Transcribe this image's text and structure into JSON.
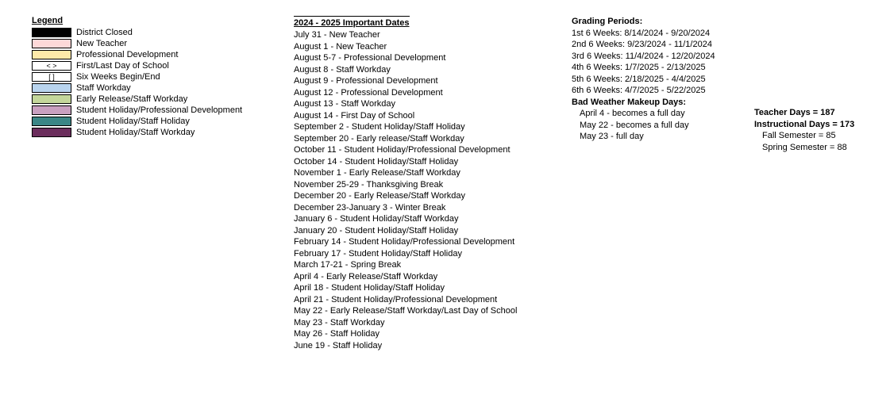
{
  "legend": {
    "header": "Legend",
    "items": [
      {
        "color": "#000000",
        "label": "District Closed",
        "glyph": ""
      },
      {
        "color": "#fdd8d8",
        "label": "New Teacher",
        "glyph": ""
      },
      {
        "color": "#fde9a9",
        "label": "Professional Development",
        "glyph": ""
      },
      {
        "color": "#ffffff",
        "label": "First/Last Day of School",
        "glyph": "< >"
      },
      {
        "color": "#ffffff",
        "label": "Six Weeks Begin/End",
        "glyph": "[  ]"
      },
      {
        "color": "#b9d4ee",
        "label": "Staff Workday",
        "glyph": ""
      },
      {
        "color": "#c4d79b",
        "label": "Early Release/Staff Workday",
        "glyph": ""
      },
      {
        "color": "#c9a0c0",
        "label": "Student Holiday/Professional Development",
        "glyph": ""
      },
      {
        "color": "#3b8686",
        "label": "Student Holiday/Staff Holiday",
        "glyph": ""
      },
      {
        "color": "#6b2d5c",
        "label": "Student Holiday/Staff Workday",
        "glyph": ""
      }
    ]
  },
  "importantDates": {
    "header": "2024 - 2025 Important Dates",
    "lines": [
      "July 31 - New Teacher",
      "August 1 - New Teacher",
      "August 5-7 - Professional Development",
      "August 8 - Staff Workday",
      "August 9 - Professional Development",
      "August 12 - Professional Development",
      "August 13 - Staff Workday",
      "August 14 - First Day of School",
      "September 2 - Student Holiday/Staff Holiday",
      "September 20 - Early release/Staff Workday",
      "October 11 - Student Holiday/Professional Development",
      "October 14 - Student Holiday/Staff Holiday",
      "November 1 - Early Release/Staff Workday",
      "November 25-29 - Thanksgiving Break",
      "December 20 - Early Release/Staff Workday",
      "December 23-January 3 - Winter Break",
      "January 6 - Student Holiday/Staff Workday",
      "January 20 - Student Holiday/Staff Holiday",
      "February 14 - Student Holiday/Professional Development",
      "February 17 - Student Holiday/Staff Holiday",
      "March 17-21 - Spring Break",
      "April 4 - Early Release/Staff Workday",
      "April 18 - Student Holiday/Staff Holiday",
      "April 21 - Student Holiday/Professional Development",
      "May 22 - Early Release/Staff Workday/Last Day of School",
      "May 23 - Staff Workday",
      "May 26 - Staff Holiday",
      "June 19 -  Staff Holiday"
    ]
  },
  "gradingPeriods": {
    "header": "Grading Periods:",
    "lines": [
      "1st 6 Weeks: 8/14/2024 - 9/20/2024",
      "2nd 6 Weeks: 9/23/2024 - 11/1/2024",
      "3rd 6 Weeks: 11/4/2024 - 12/20/2024",
      "4th 6 Weeks: 1/7/2025 - 2/13/2025",
      "5th 6 Weeks: 2/18/2025 - 4/4/2025",
      "6th 6 Weeks: 4/7/2025 - 5/22/2025"
    ]
  },
  "badWeather": {
    "header": "Bad Weather Makeup Days:",
    "lines": [
      "April 4 - becomes a full day",
      "May 22 - becomes a full day",
      "May 23 - full day"
    ]
  },
  "summary": {
    "teacherDays": "Teacher Days = 187",
    "instructionalDays": "Instructional Days = 173",
    "fall": "Fall Semester = 85",
    "spring": "Spring Semester = 88"
  }
}
